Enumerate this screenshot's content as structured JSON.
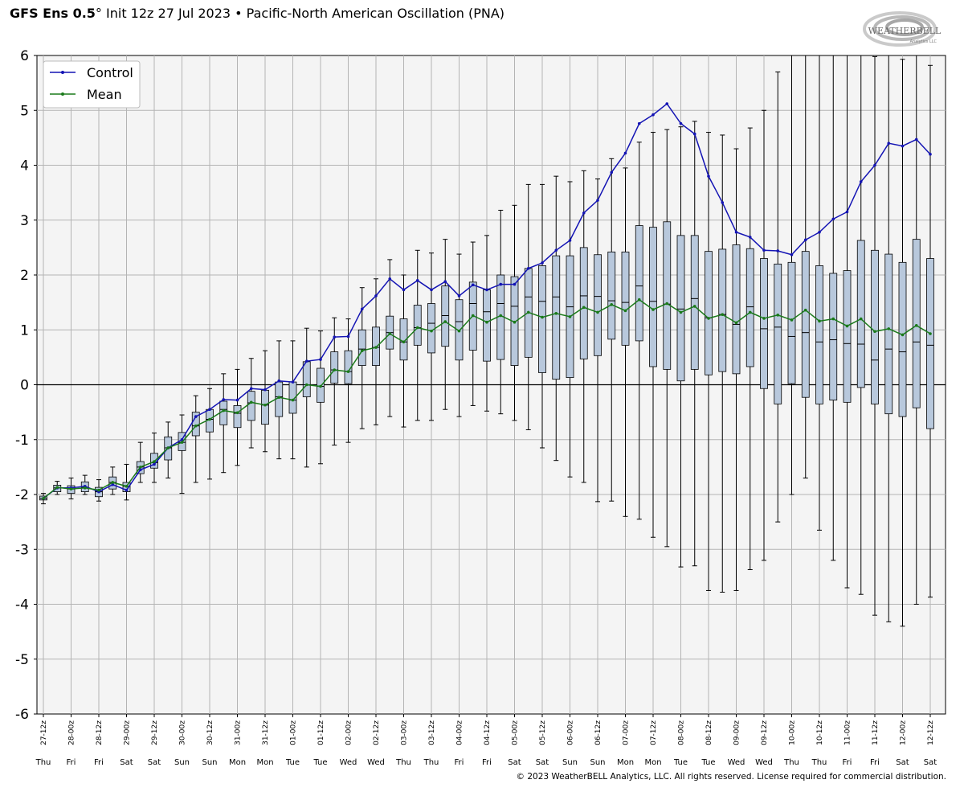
{
  "title": {
    "model": "GFS Ens 0.5",
    "degree": "°",
    "rest": " Init 12z 27 Jul 2023 • Pacific-North American Oscillation (PNA)"
  },
  "logo": {
    "text": "WEATHERBELL",
    "sub": "Analytics LLC"
  },
  "footer": "© 2023 WeatherBELL Analytics, LLC. All rights reserved. License required for commercial distribution.",
  "colors": {
    "control": "#1414b4",
    "mean": "#1a7a1a",
    "box": "#b8c8dc",
    "grid": "#b4b4b4",
    "bg": "#f4f4f4"
  },
  "chart_data": {
    "type": "box",
    "ylim": [
      -6,
      6
    ],
    "yticks": [
      6,
      5,
      4,
      3,
      2,
      1,
      0,
      -1,
      -2,
      -3,
      -4,
      -5,
      -6
    ],
    "legend": {
      "position": "top-left",
      "entries": [
        "Control",
        "Mean"
      ]
    },
    "categories": [
      "27-12z",
      "28-00z",
      "28-12z",
      "29-00z",
      "29-12z",
      "30-00z",
      "30-12z",
      "31-00z",
      "31-12z",
      "01-00z",
      "01-12z",
      "02-00z",
      "02-12z",
      "03-00z",
      "03-12z",
      "04-00z",
      "04-12z",
      "05-00z",
      "05-12z",
      "06-00z",
      "06-12z",
      "07-00z",
      "07-12z",
      "08-00z",
      "08-12z",
      "09-00z",
      "09-12z",
      "10-00z",
      "10-12z",
      "11-00z",
      "11-12z",
      "12-00z",
      "12-12z"
    ],
    "day_labels": [
      "Thu",
      "Fri",
      "Fri",
      "Sat",
      "Sat",
      "Sun",
      "Sun",
      "Mon",
      "Mon",
      "Tue",
      "Tue",
      "Wed",
      "Wed",
      "Thu",
      "Thu",
      "Fri",
      "Fri",
      "Sat",
      "Sat",
      "Sun",
      "Sun",
      "Mon",
      "Mon",
      "Tue",
      "Tue",
      "Wed",
      "Wed",
      "Thu",
      "Thu",
      "Fri",
      "Fri",
      "Sat",
      "Sat"
    ],
    "step_hours": 6,
    "series": [
      {
        "name": "Control",
        "values": [
          -2.07,
          -1.88,
          -1.88,
          -1.85,
          -1.95,
          -1.82,
          -1.92,
          -1.55,
          -1.45,
          -1.15,
          -1.0,
          -0.58,
          -0.45,
          -0.27,
          -0.28,
          -0.07,
          -0.09,
          0.07,
          0.05,
          0.43,
          0.46,
          0.87,
          0.88,
          1.38,
          1.62,
          1.93,
          1.73,
          1.9,
          1.73,
          1.88,
          1.62,
          1.82,
          1.73,
          1.83,
          1.83,
          2.12,
          2.22,
          2.45,
          2.63,
          3.13,
          3.36,
          3.87,
          4.22,
          4.76,
          4.92,
          5.12,
          4.76,
          4.57,
          3.8,
          3.32,
          2.78,
          2.69,
          2.45,
          2.44,
          2.37,
          2.64,
          2.78,
          3.02,
          3.15,
          3.7,
          4.0,
          4.4,
          4.35,
          4.47,
          4.2
        ]
      },
      {
        "name": "Mean",
        "values": [
          -2.07,
          -1.87,
          -1.9,
          -1.88,
          -1.92,
          -1.78,
          -1.85,
          -1.5,
          -1.4,
          -1.15,
          -1.05,
          -0.75,
          -0.63,
          -0.47,
          -0.51,
          -0.32,
          -0.37,
          -0.23,
          -0.28,
          0.0,
          -0.03,
          0.27,
          0.24,
          0.62,
          0.68,
          0.93,
          0.78,
          1.04,
          0.98,
          1.15,
          0.98,
          1.26,
          1.14,
          1.26,
          1.14,
          1.32,
          1.23,
          1.3,
          1.24,
          1.41,
          1.32,
          1.46,
          1.35,
          1.55,
          1.37,
          1.48,
          1.32,
          1.43,
          1.21,
          1.28,
          1.13,
          1.32,
          1.21,
          1.27,
          1.18,
          1.36,
          1.16,
          1.2,
          1.07,
          1.2,
          0.97,
          1.02,
          0.91,
          1.08,
          0.93
        ]
      }
    ],
    "boxes": [
      {
        "lo": -2.17,
        "q1": -2.1,
        "med": -2.07,
        "q3": -2.03,
        "hi": -1.98
      },
      {
        "lo": -2.0,
        "q1": -1.95,
        "med": -1.88,
        "q3": -1.83,
        "hi": -1.76
      },
      {
        "lo": -2.08,
        "q1": -1.98,
        "med": -1.9,
        "q3": -1.84,
        "hi": -1.7
      },
      {
        "lo": -2.0,
        "q1": -1.95,
        "med": -1.87,
        "q3": -1.77,
        "hi": -1.65
      },
      {
        "lo": -2.12,
        "q1": -2.04,
        "med": -1.95,
        "q3": -1.87,
        "hi": -1.73
      },
      {
        "lo": -2.0,
        "q1": -1.9,
        "med": -1.78,
        "q3": -1.68,
        "hi": -1.5
      },
      {
        "lo": -2.1,
        "q1": -1.95,
        "med": -1.85,
        "q3": -1.78,
        "hi": -1.45
      },
      {
        "lo": -1.78,
        "q1": -1.62,
        "med": -1.5,
        "q3": -1.4,
        "hi": -1.05
      },
      {
        "lo": -1.78,
        "q1": -1.52,
        "med": -1.42,
        "q3": -1.25,
        "hi": -0.88
      },
      {
        "lo": -1.7,
        "q1": -1.37,
        "med": -1.15,
        "q3": -0.95,
        "hi": -0.68
      },
      {
        "lo": -1.98,
        "q1": -1.2,
        "med": -1.05,
        "q3": -0.87,
        "hi": -0.55
      },
      {
        "lo": -1.78,
        "q1": -0.93,
        "med": -0.75,
        "q3": -0.5,
        "hi": -0.2
      },
      {
        "lo": -1.72,
        "q1": -0.86,
        "med": -0.63,
        "q3": -0.45,
        "hi": -0.07
      },
      {
        "lo": -1.6,
        "q1": -0.73,
        "med": -0.45,
        "q3": -0.3,
        "hi": 0.2
      },
      {
        "lo": -1.47,
        "q1": -0.78,
        "med": -0.52,
        "q3": -0.38,
        "hi": 0.28
      },
      {
        "lo": -1.15,
        "q1": -0.65,
        "med": -0.33,
        "q3": -0.12,
        "hi": 0.48
      },
      {
        "lo": -1.22,
        "q1": -0.72,
        "med": -0.37,
        "q3": -0.1,
        "hi": 0.62
      },
      {
        "lo": -1.35,
        "q1": -0.58,
        "med": -0.22,
        "q3": 0.05,
        "hi": 0.8
      },
      {
        "lo": -1.35,
        "q1": -0.52,
        "med": -0.28,
        "q3": 0.05,
        "hi": 0.8
      },
      {
        "lo": -1.5,
        "q1": -0.22,
        "med": 0.0,
        "q3": 0.42,
        "hi": 1.03
      },
      {
        "lo": -1.44,
        "q1": -0.32,
        "med": -0.03,
        "q3": 0.3,
        "hi": 0.98
      },
      {
        "lo": -1.1,
        "q1": 0.03,
        "med": 0.27,
        "q3": 0.6,
        "hi": 1.22
      },
      {
        "lo": -1.05,
        "q1": 0.02,
        "med": 0.24,
        "q3": 0.62,
        "hi": 1.2
      },
      {
        "lo": -0.8,
        "q1": 0.35,
        "med": 0.65,
        "q3": 1.0,
        "hi": 1.77
      },
      {
        "lo": -0.73,
        "q1": 0.35,
        "med": 0.68,
        "q3": 1.05,
        "hi": 1.93
      },
      {
        "lo": -0.58,
        "q1": 0.65,
        "med": 0.95,
        "q3": 1.25,
        "hi": 2.28
      },
      {
        "lo": -0.77,
        "q1": 0.45,
        "med": 0.78,
        "q3": 1.2,
        "hi": 2.0
      },
      {
        "lo": -0.65,
        "q1": 0.72,
        "med": 1.04,
        "q3": 1.45,
        "hi": 2.45
      },
      {
        "lo": -0.65,
        "q1": 0.58,
        "med": 1.12,
        "q3": 1.48,
        "hi": 2.4
      },
      {
        "lo": -0.45,
        "q1": 0.7,
        "med": 1.26,
        "q3": 1.8,
        "hi": 2.65
      },
      {
        "lo": -0.58,
        "q1": 0.45,
        "med": 1.15,
        "q3": 1.55,
        "hi": 2.38
      },
      {
        "lo": -0.38,
        "q1": 0.63,
        "med": 1.48,
        "q3": 1.87,
        "hi": 2.6
      },
      {
        "lo": -0.48,
        "q1": 0.43,
        "med": 1.33,
        "q3": 1.73,
        "hi": 2.72
      },
      {
        "lo": -0.53,
        "q1": 0.46,
        "med": 1.48,
        "q3": 2.0,
        "hi": 3.18
      },
      {
        "lo": -0.65,
        "q1": 0.35,
        "med": 1.43,
        "q3": 1.97,
        "hi": 3.27
      },
      {
        "lo": -0.82,
        "q1": 0.5,
        "med": 1.6,
        "q3": 2.12,
        "hi": 3.65
      },
      {
        "lo": -1.15,
        "q1": 0.22,
        "med": 1.52,
        "q3": 2.17,
        "hi": 3.65
      },
      {
        "lo": -1.38,
        "q1": 0.1,
        "med": 1.6,
        "q3": 2.35,
        "hi": 3.8
      },
      {
        "lo": -1.68,
        "q1": 0.13,
        "med": 1.42,
        "q3": 2.35,
        "hi": 3.7
      },
      {
        "lo": -1.78,
        "q1": 0.47,
        "med": 1.62,
        "q3": 2.5,
        "hi": 3.9
      },
      {
        "lo": -2.13,
        "q1": 0.53,
        "med": 1.61,
        "q3": 2.37,
        "hi": 3.75
      },
      {
        "lo": -2.12,
        "q1": 0.83,
        "med": 1.53,
        "q3": 2.42,
        "hi": 4.12
      },
      {
        "lo": -2.4,
        "q1": 0.72,
        "med": 1.5,
        "q3": 2.42,
        "hi": 3.95
      },
      {
        "lo": -2.45,
        "q1": 0.8,
        "med": 1.8,
        "q3": 2.9,
        "hi": 4.42
      },
      {
        "lo": -2.78,
        "q1": 0.33,
        "med": 1.52,
        "q3": 2.87,
        "hi": 4.6
      },
      {
        "lo": -2.95,
        "q1": 0.28,
        "med": 1.47,
        "q3": 2.97,
        "hi": 4.65
      },
      {
        "lo": -3.32,
        "q1": 0.07,
        "med": 1.38,
        "q3": 2.72,
        "hi": 4.7
      },
      {
        "lo": -3.3,
        "q1": 0.28,
        "med": 1.57,
        "q3": 2.72,
        "hi": 4.8
      },
      {
        "lo": -3.75,
        "q1": 0.18,
        "med": 1.22,
        "q3": 2.43,
        "hi": 4.6
      },
      {
        "lo": -3.78,
        "q1": 0.24,
        "med": 1.28,
        "q3": 2.47,
        "hi": 4.55
      },
      {
        "lo": -3.75,
        "q1": 0.2,
        "med": 1.1,
        "q3": 2.55,
        "hi": 4.3
      },
      {
        "lo": -3.37,
        "q1": 0.33,
        "med": 1.42,
        "q3": 2.48,
        "hi": 4.68
      },
      {
        "lo": -3.2,
        "q1": -0.07,
        "med": 1.02,
        "q3": 2.3,
        "hi": 5.0
      },
      {
        "lo": -2.5,
        "q1": -0.35,
        "med": 1.05,
        "q3": 2.2,
        "hi": 5.7
      },
      {
        "lo": -2.0,
        "q1": 0.02,
        "med": 0.88,
        "q3": 2.23,
        "hi": 6.0
      },
      {
        "lo": -1.7,
        "q1": -0.23,
        "med": 0.95,
        "q3": 2.43,
        "hi": 6.0
      },
      {
        "lo": -2.65,
        "q1": -0.35,
        "med": 0.78,
        "q3": 2.17,
        "hi": 6.0
      },
      {
        "lo": -3.2,
        "q1": -0.28,
        "med": 0.82,
        "q3": 2.03,
        "hi": 6.0
      },
      {
        "lo": -3.7,
        "q1": -0.32,
        "med": 0.75,
        "q3": 2.08,
        "hi": 6.0
      },
      {
        "lo": -3.82,
        "q1": -0.05,
        "med": 0.74,
        "q3": 2.63,
        "hi": 6.0
      },
      {
        "lo": -4.2,
        "q1": -0.35,
        "med": 0.45,
        "q3": 2.45,
        "hi": 5.98
      },
      {
        "lo": -4.32,
        "q1": -0.53,
        "med": 0.65,
        "q3": 2.38,
        "hi": 6.0
      },
      {
        "lo": -4.4,
        "q1": -0.58,
        "med": 0.6,
        "q3": 2.23,
        "hi": 5.93
      },
      {
        "lo": -4.0,
        "q1": -0.42,
        "med": 0.78,
        "q3": 2.65,
        "hi": 6.0
      },
      {
        "lo": -3.87,
        "q1": -0.8,
        "med": 0.72,
        "q3": 2.3,
        "hi": 5.82
      }
    ]
  }
}
